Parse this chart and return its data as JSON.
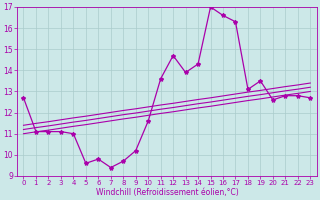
{
  "xlabel": "Windchill (Refroidissement éolien,°C)",
  "bg_color": "#cce8e8",
  "line_color": "#aa00aa",
  "grid_color": "#aacccc",
  "x_hours": [
    0,
    1,
    2,
    3,
    4,
    5,
    6,
    7,
    8,
    9,
    10,
    11,
    12,
    13,
    14,
    15,
    16,
    17,
    18,
    19,
    20,
    21,
    22,
    23
  ],
  "windchill": [
    12.7,
    11.1,
    11.1,
    11.1,
    11.0,
    9.6,
    9.8,
    9.4,
    9.7,
    10.2,
    11.6,
    13.6,
    14.7,
    13.9,
    14.3,
    17.0,
    16.6,
    16.3,
    13.1,
    13.5,
    12.6,
    12.8,
    12.8,
    12.7
  ],
  "reg_lines": [
    [
      11.0,
      11.09,
      11.17,
      11.26,
      11.35,
      11.43,
      11.52,
      11.61,
      11.7,
      11.78,
      11.87,
      11.96,
      12.04,
      12.13,
      12.22,
      12.3,
      12.39,
      12.48,
      12.57,
      12.65,
      12.74,
      12.83,
      12.91,
      13.0
    ],
    [
      11.2,
      11.29,
      11.37,
      11.46,
      11.55,
      11.63,
      11.72,
      11.81,
      11.9,
      11.98,
      12.07,
      12.16,
      12.24,
      12.33,
      12.42,
      12.5,
      12.59,
      12.68,
      12.77,
      12.85,
      12.94,
      13.03,
      13.11,
      13.2
    ],
    [
      11.4,
      11.49,
      11.57,
      11.66,
      11.75,
      11.83,
      11.92,
      12.01,
      12.1,
      12.18,
      12.27,
      12.36,
      12.44,
      12.53,
      12.62,
      12.7,
      12.79,
      12.88,
      12.97,
      13.05,
      13.14,
      13.23,
      13.31,
      13.4
    ]
  ],
  "ylim": [
    9,
    17
  ],
  "yticks": [
    9,
    10,
    11,
    12,
    13,
    14,
    15,
    16,
    17
  ]
}
